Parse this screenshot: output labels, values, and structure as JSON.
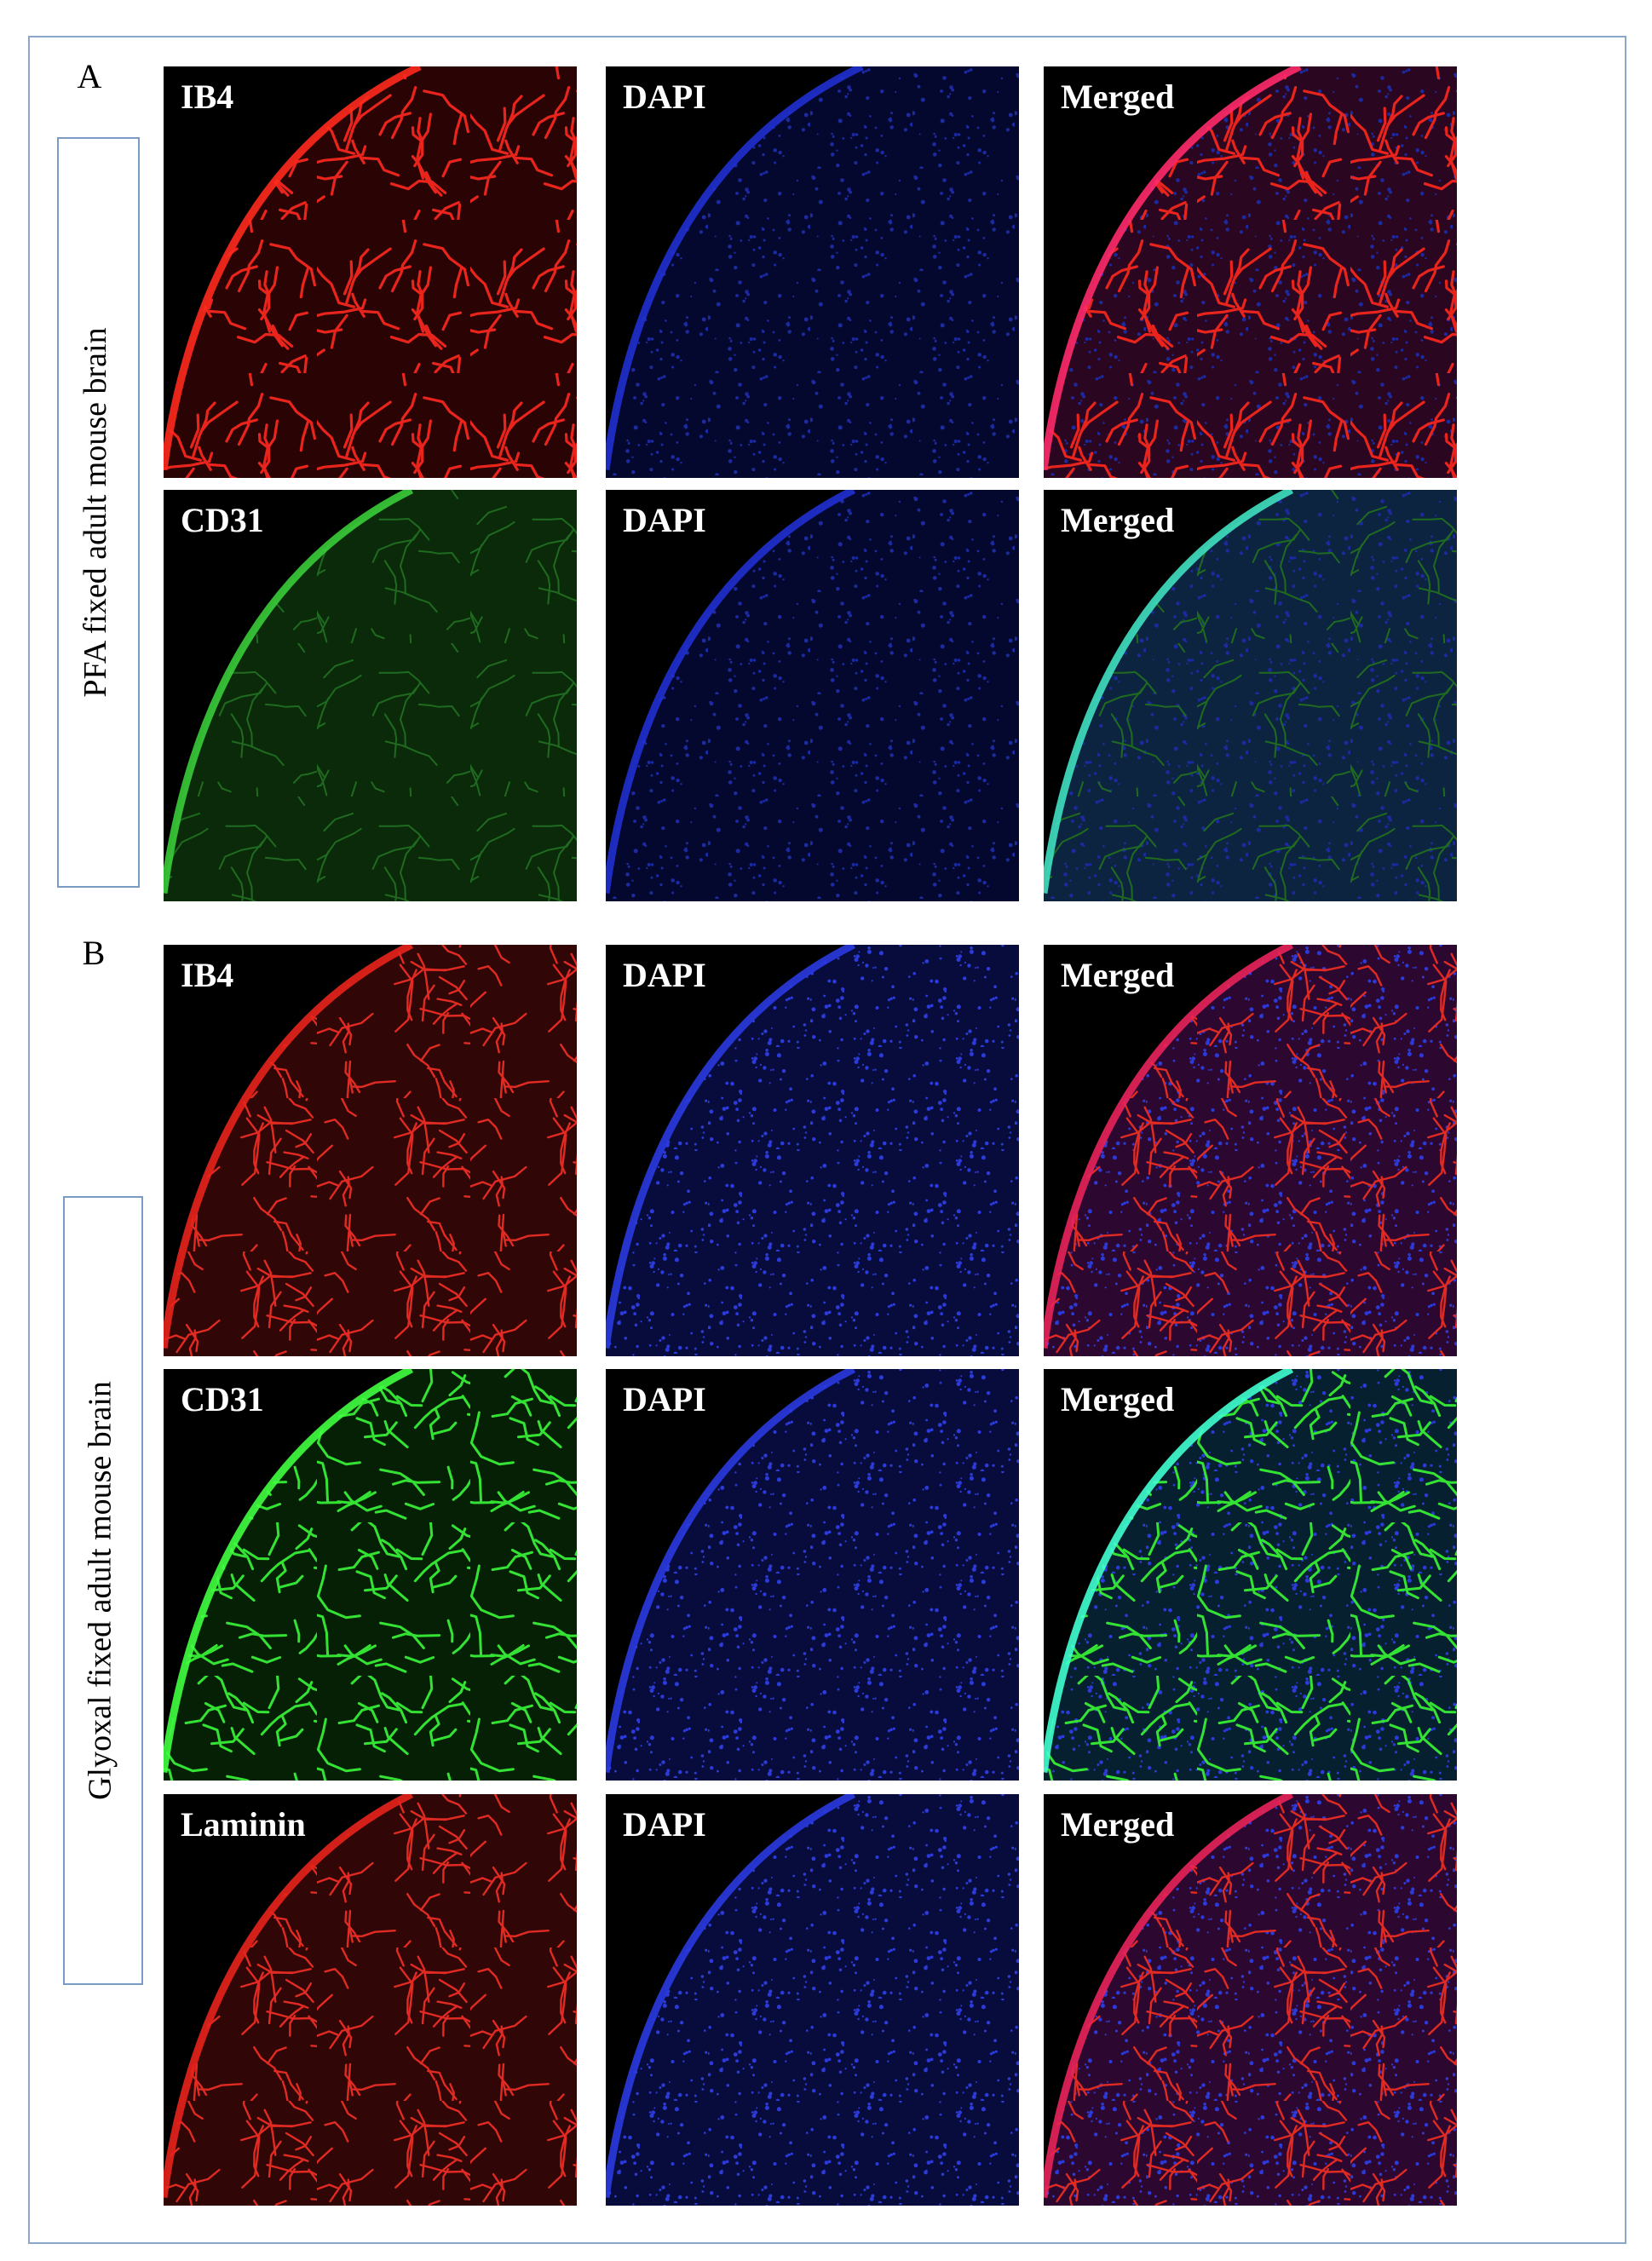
{
  "panels": [
    {
      "label": "A",
      "side_label": "PFA fixed adult mouse brain",
      "rows": [
        [
          "IB4",
          "DAPI",
          "Merged"
        ],
        [
          "CD31",
          "DAPI",
          "Merged"
        ]
      ]
    },
    {
      "label": "B",
      "side_label": "Glyoxal fixed adult mouse brain",
      "rows": [
        [
          "IB4",
          "DAPI",
          "Merged"
        ],
        [
          "CD31",
          "DAPI",
          "Merged"
        ],
        [
          "Laminin",
          "DAPI",
          "Merged"
        ]
      ]
    }
  ]
}
